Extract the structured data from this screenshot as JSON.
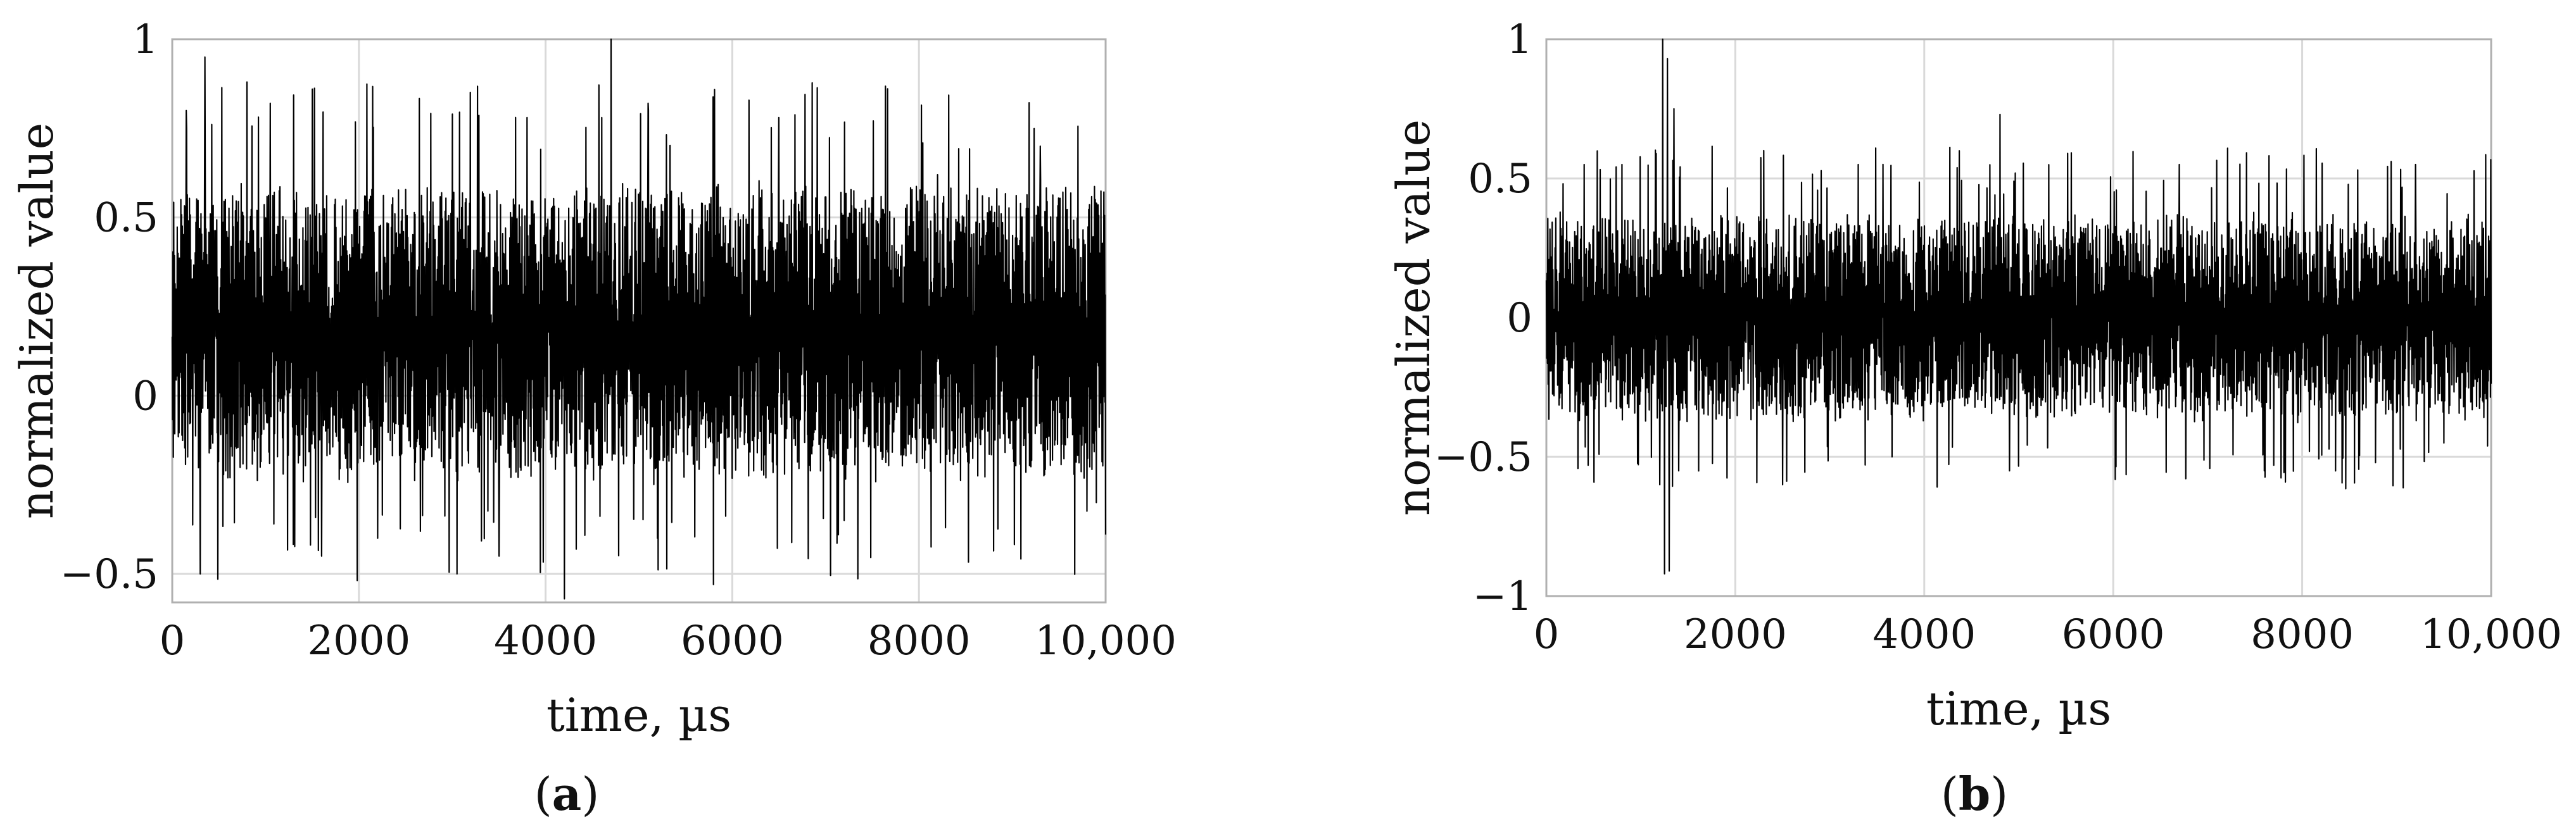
{
  "chart_data": [
    {
      "type": "line",
      "panel_label_open": "(",
      "panel_label_letter": "a",
      "panel_label_close": ")",
      "xlabel": "time, µs",
      "ylabel": "normalized value",
      "xlim": [
        0,
        10000
      ],
      "ylim": [
        -0.58,
        1.0
      ],
      "x_ticks": [
        0,
        2000,
        4000,
        6000,
        8000,
        10000
      ],
      "x_tick_labels": [
        "0",
        "2000",
        "4000",
        "6000",
        "8000",
        "10,000"
      ],
      "y_ticks": [
        -0.5,
        0,
        0.5,
        1
      ],
      "y_tick_labels": [
        "−0.5",
        "0",
        "0.5",
        "1"
      ],
      "grid": true,
      "series": [
        {
          "color": "#000000",
          "baseline": 0.18,
          "noise_amplitude": 0.25,
          "spike_events": [
            {
              "x": 150,
              "y": 0.8
            },
            {
              "x": 350,
              "y": 0.95
            },
            {
              "x": 300,
              "y": -0.5
            },
            {
              "x": 800,
              "y": 0.88
            },
            {
              "x": 1050,
              "y": 0.82
            },
            {
              "x": 1500,
              "y": 0.86
            },
            {
              "x": 1600,
              "y": -0.45
            },
            {
              "x": 2200,
              "y": -0.4
            },
            {
              "x": 3000,
              "y": 0.79
            },
            {
              "x": 3050,
              "y": -0.5
            },
            {
              "x": 3500,
              "y": -0.45
            },
            {
              "x": 3800,
              "y": 0.78
            },
            {
              "x": 4200,
              "y": -0.57
            },
            {
              "x": 4600,
              "y": 0.78
            },
            {
              "x": 4700,
              "y": 1.0
            },
            {
              "x": 5100,
              "y": 0.82
            },
            {
              "x": 5200,
              "y": -0.4
            },
            {
              "x": 5800,
              "y": -0.53
            },
            {
              "x": 6500,
              "y": 0.78
            },
            {
              "x": 7200,
              "y": -0.35
            },
            {
              "x": 8200,
              "y": 0.62
            },
            {
              "x": 9300,
              "y": 0.7
            },
            {
              "x": 9900,
              "y": -0.3
            }
          ]
        }
      ]
    },
    {
      "type": "line",
      "panel_label_open": "(",
      "panel_label_letter": "b",
      "panel_label_close": ")",
      "xlabel": "time, µs",
      "ylabel": "normalized value",
      "xlim": [
        0,
        10000
      ],
      "ylim": [
        -1.0,
        1.0
      ],
      "x_ticks": [
        0,
        2000,
        4000,
        6000,
        8000,
        10000
      ],
      "x_tick_labels": [
        "0",
        "2000",
        "4000",
        "6000",
        "8000",
        "10,000"
      ],
      "y_ticks": [
        -1,
        -0.5,
        0,
        0.5,
        1
      ],
      "y_tick_labels": [
        "−1",
        "−0.5",
        "0",
        "0.5",
        "1"
      ],
      "grid": true,
      "series": [
        {
          "color": "#000000",
          "baseline": 0.0,
          "noise_amplitude": 0.22,
          "spike_events": [
            {
              "x": 1230,
              "y": 1.0
            },
            {
              "x": 1250,
              "y": -0.92
            },
            {
              "x": 1280,
              "y": 0.93
            },
            {
              "x": 1300,
              "y": -0.91
            },
            {
              "x": 1350,
              "y": 0.75
            },
            {
              "x": 1200,
              "y": -0.6
            },
            {
              "x": 1400,
              "y": -0.55
            },
            {
              "x": 800,
              "y": 0.55
            },
            {
              "x": 400,
              "y": 0.55
            },
            {
              "x": 2300,
              "y": 0.6
            },
            {
              "x": 2500,
              "y": -0.6
            },
            {
              "x": 3300,
              "y": 0.55
            },
            {
              "x": 4800,
              "y": 0.73
            },
            {
              "x": 4900,
              "y": -0.55
            },
            {
              "x": 6700,
              "y": 0.55
            },
            {
              "x": 7600,
              "y": -0.55
            },
            {
              "x": 9200,
              "y": 0.55
            },
            {
              "x": 9500,
              "y": -0.45
            }
          ]
        }
      ]
    }
  ]
}
